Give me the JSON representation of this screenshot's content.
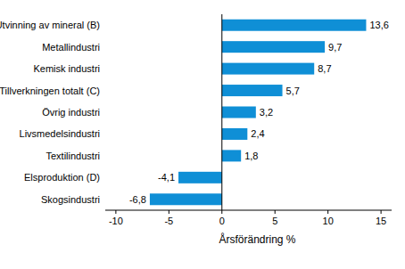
{
  "chart_data": {
    "type": "bar",
    "orientation": "horizontal",
    "x_label": "Årsförändring %",
    "categories": [
      "Utvinning av mineral (B)",
      "Metallindustri",
      "Kemisk industri",
      "Tillverkningen totalt (C)",
      "Övrig industri",
      "Livsmedelsindustri",
      "Textilindustri",
      "Elsproduktion (D)",
      "Skogsindustri"
    ],
    "values": [
      13.6,
      9.7,
      8.7,
      5.7,
      3.2,
      2.4,
      1.8,
      -4.1,
      -6.8
    ],
    "value_labels": [
      "13,6",
      "9,7",
      "8,7",
      "5,7",
      "3,2",
      "2,4",
      "1,8",
      "-4,1",
      "-6,8"
    ],
    "data_labels": true,
    "color": "#0f8fd6",
    "xlim": [
      -11,
      16
    ],
    "xticks": [
      -10,
      -5,
      0,
      5,
      10,
      15
    ],
    "grid": false
  }
}
